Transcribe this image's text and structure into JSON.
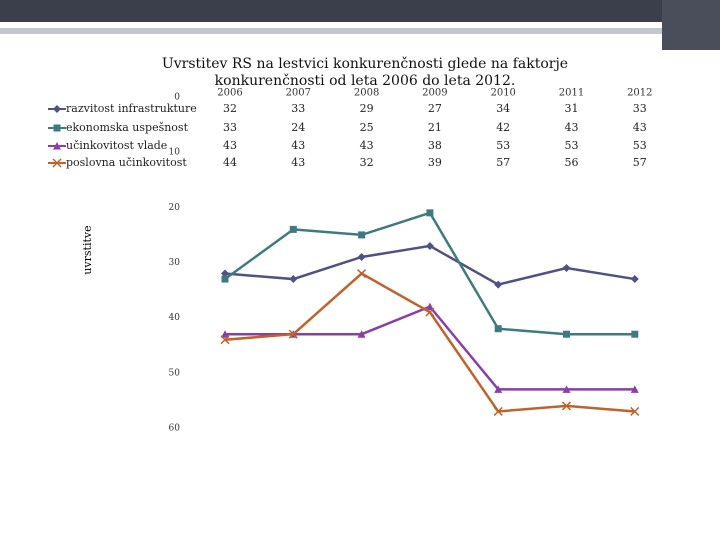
{
  "chart_data": {
    "type": "line",
    "title": "Uvrstitev RS na lestvici konkurenčnosti glede na faktorje konkurenčnosti od leta 2006 do leta 2012.",
    "y_label": "uvrstitve",
    "categories": [
      "2006",
      "2007",
      "2008",
      "2009",
      "2010",
      "2011",
      "2012"
    ],
    "series": [
      {
        "name": "razvitost infrastrukture",
        "color": "#4f5283",
        "marker": "diamond",
        "values": [
          32,
          33,
          29,
          27,
          34,
          31,
          33
        ]
      },
      {
        "name": "ekonomska uspešnost",
        "color": "#3e7a80",
        "marker": "square",
        "values": [
          33,
          24,
          25,
          21,
          42,
          43,
          43
        ]
      },
      {
        "name": "učinkovitost vlade",
        "color": "#8a3fa6",
        "marker": "triangle",
        "values": [
          43,
          43,
          43,
          38,
          53,
          53,
          53
        ]
      },
      {
        "name": "poslovna učinkovitost",
        "color": "#c0622b",
        "marker": "x",
        "values": [
          44,
          43,
          32,
          39,
          57,
          56,
          57
        ]
      }
    ],
    "ylim": [
      0,
      60
    ],
    "yticks": [
      0,
      10,
      20,
      30,
      40,
      50,
      60
    ],
    "y_reversed": true,
    "grid": false,
    "data_table": true
  }
}
